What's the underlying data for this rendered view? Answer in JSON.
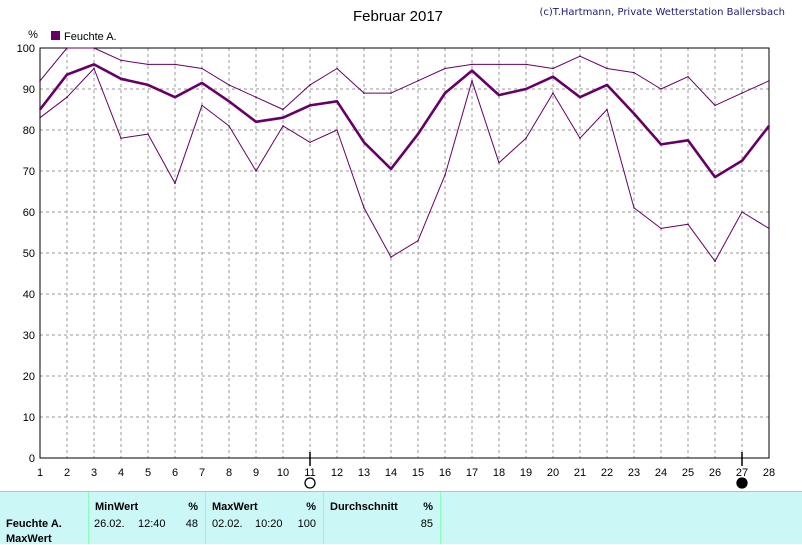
{
  "chart_data": {
    "type": "line",
    "title": "Februar 2017",
    "credit": "(c)T.Hartmann, Private Wetterstation Ballersbach",
    "ylabel": "%",
    "ylim": [
      0,
      100
    ],
    "yticks": [
      0,
      10,
      20,
      30,
      40,
      50,
      60,
      70,
      80,
      90,
      100
    ],
    "x": [
      1,
      2,
      3,
      4,
      5,
      6,
      7,
      8,
      9,
      10,
      11,
      12,
      13,
      14,
      15,
      16,
      17,
      18,
      19,
      20,
      21,
      22,
      23,
      24,
      25,
      26,
      27,
      28
    ],
    "grid": true,
    "legend": {
      "label": "Feuchte A.",
      "color": "#660066",
      "position": "top-left"
    },
    "series": [
      {
        "role": "max",
        "color": "#660066",
        "values": [
          92,
          100,
          100,
          97,
          96,
          96,
          95,
          91,
          88,
          85,
          91,
          95,
          89,
          89,
          92,
          95,
          96,
          96,
          96,
          95,
          98,
          95,
          94,
          90,
          93,
          86,
          89,
          92
        ]
      },
      {
        "role": "mean",
        "color": "#660066",
        "values": [
          85,
          93.5,
          96,
          92.5,
          91,
          88,
          91.5,
          87,
          82,
          83,
          86,
          87,
          77,
          70.5,
          79,
          89,
          94.5,
          88.5,
          90,
          93,
          88,
          91,
          84,
          76.5,
          77.5,
          68.5,
          72.5,
          81
        ]
      },
      {
        "role": "min",
        "color": "#660066",
        "values": [
          83,
          88,
          95,
          78,
          79,
          67,
          86,
          81,
          70,
          81,
          77,
          80,
          61,
          49,
          53,
          69,
          92,
          72,
          78,
          89,
          78,
          85,
          61,
          56,
          57,
          48,
          60,
          56
        ]
      }
    ],
    "moon_phases": [
      {
        "day": 11,
        "phase": "full"
      },
      {
        "day": 27,
        "phase": "new"
      }
    ]
  },
  "stats": {
    "row_label": "Feuchte A.",
    "row_label_2": "MaxWert",
    "min": {
      "header": "MinWert",
      "unit": "%",
      "date": "26.02.",
      "time": "12:40",
      "value": "48"
    },
    "max": {
      "header": "MaxWert",
      "unit": "%",
      "date": "02.02.",
      "time": "10:20",
      "value": "100"
    },
    "avg": {
      "header": "Durchschnitt",
      "unit": "%",
      "value": "85"
    }
  }
}
